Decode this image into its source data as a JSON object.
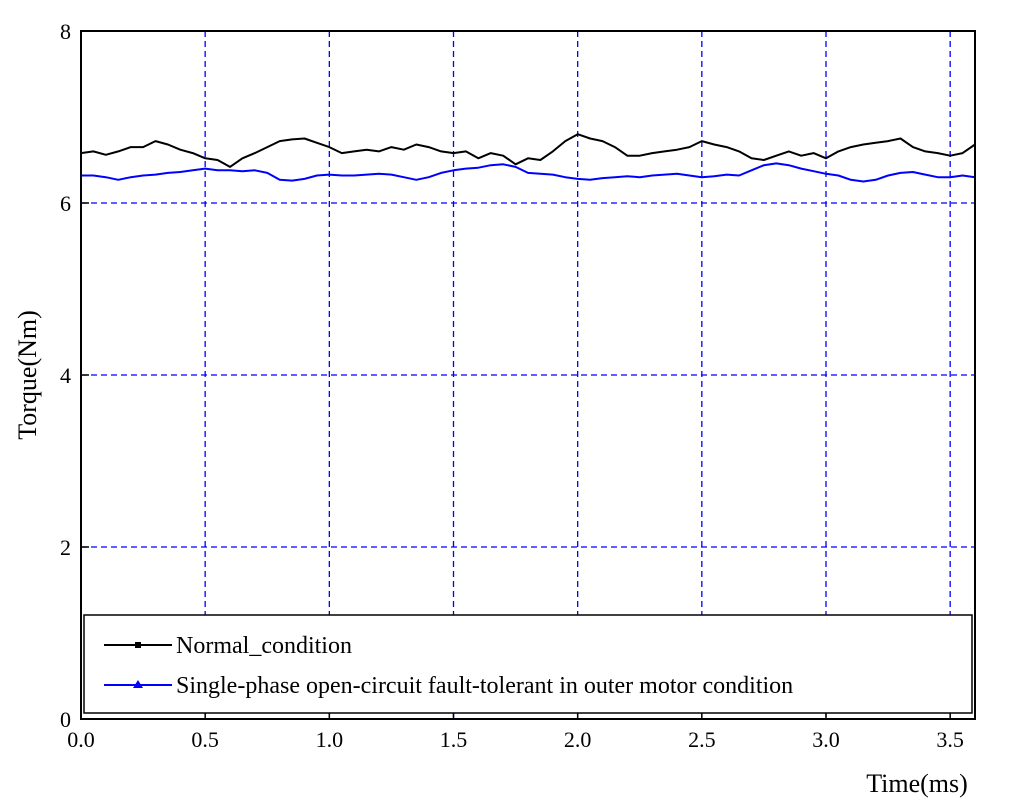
{
  "chart_data": {
    "type": "line",
    "title": "",
    "xlabel": "Time(ms)",
    "ylabel": "Torque(Nm)",
    "xlim": [
      0.0,
      3.6
    ],
    "ylim": [
      0,
      8
    ],
    "xticks": [
      0.0,
      0.5,
      1.0,
      1.5,
      2.0,
      2.5,
      3.0,
      3.5
    ],
    "xtick_labels": [
      "0.0",
      "0.5",
      "1.0",
      "1.5",
      "2.0",
      "2.5",
      "3.0",
      "3.5"
    ],
    "yticks": [
      0,
      2,
      4,
      6,
      8
    ],
    "ytick_labels": [
      "0",
      "2",
      "4",
      "6",
      "8"
    ],
    "grid": true,
    "grid_color": "#0000ff",
    "legend_position": "bottom",
    "series": [
      {
        "name": "Normal_condition",
        "color": "#000000",
        "marker": "square",
        "x": [
          0.0,
          0.05,
          0.1,
          0.15,
          0.2,
          0.25,
          0.3,
          0.35,
          0.4,
          0.45,
          0.5,
          0.55,
          0.6,
          0.65,
          0.7,
          0.75,
          0.8,
          0.85,
          0.9,
          0.95,
          1.0,
          1.05,
          1.1,
          1.15,
          1.2,
          1.25,
          1.3,
          1.35,
          1.4,
          1.45,
          1.5,
          1.55,
          1.6,
          1.65,
          1.7,
          1.75,
          1.8,
          1.85,
          1.9,
          1.95,
          2.0,
          2.05,
          2.1,
          2.15,
          2.2,
          2.25,
          2.3,
          2.35,
          2.4,
          2.45,
          2.5,
          2.55,
          2.6,
          2.65,
          2.7,
          2.75,
          2.8,
          2.85,
          2.9,
          2.95,
          3.0,
          3.05,
          3.1,
          3.15,
          3.2,
          3.25,
          3.3,
          3.35,
          3.4,
          3.45,
          3.5,
          3.55,
          3.6
        ],
        "y": [
          6.58,
          6.6,
          6.56,
          6.6,
          6.65,
          6.65,
          6.72,
          6.68,
          6.62,
          6.58,
          6.52,
          6.5,
          6.42,
          6.52,
          6.58,
          6.65,
          6.72,
          6.74,
          6.75,
          6.7,
          6.65,
          6.58,
          6.6,
          6.62,
          6.6,
          6.65,
          6.62,
          6.68,
          6.65,
          6.6,
          6.58,
          6.6,
          6.52,
          6.58,
          6.55,
          6.45,
          6.52,
          6.5,
          6.6,
          6.72,
          6.8,
          6.75,
          6.72,
          6.65,
          6.55,
          6.55,
          6.58,
          6.6,
          6.62,
          6.65,
          6.72,
          6.68,
          6.65,
          6.6,
          6.52,
          6.5,
          6.55,
          6.6,
          6.55,
          6.58,
          6.52,
          6.6,
          6.65,
          6.68,
          6.7,
          6.72,
          6.75,
          6.65,
          6.6,
          6.58,
          6.55,
          6.58,
          6.68
        ]
      },
      {
        "name": "Single-phase open-circuit fault-tolerant in outer motor condition",
        "color": "#0000ff",
        "marker": "triangle",
        "x": [
          0.0,
          0.05,
          0.1,
          0.15,
          0.2,
          0.25,
          0.3,
          0.35,
          0.4,
          0.45,
          0.5,
          0.55,
          0.6,
          0.65,
          0.7,
          0.75,
          0.8,
          0.85,
          0.9,
          0.95,
          1.0,
          1.05,
          1.1,
          1.15,
          1.2,
          1.25,
          1.3,
          1.35,
          1.4,
          1.45,
          1.5,
          1.55,
          1.6,
          1.65,
          1.7,
          1.75,
          1.8,
          1.85,
          1.9,
          1.95,
          2.0,
          2.05,
          2.1,
          2.15,
          2.2,
          2.25,
          2.3,
          2.35,
          2.4,
          2.45,
          2.5,
          2.55,
          2.6,
          2.65,
          2.7,
          2.75,
          2.8,
          2.85,
          2.9,
          2.95,
          3.0,
          3.05,
          3.1,
          3.15,
          3.2,
          3.25,
          3.3,
          3.35,
          3.4,
          3.45,
          3.5,
          3.55,
          3.6
        ],
        "y": [
          6.32,
          6.32,
          6.3,
          6.27,
          6.3,
          6.32,
          6.33,
          6.35,
          6.36,
          6.38,
          6.4,
          6.38,
          6.38,
          6.37,
          6.38,
          6.35,
          6.27,
          6.26,
          6.28,
          6.32,
          6.33,
          6.32,
          6.32,
          6.33,
          6.34,
          6.33,
          6.3,
          6.27,
          6.3,
          6.35,
          6.38,
          6.4,
          6.41,
          6.44,
          6.45,
          6.42,
          6.35,
          6.34,
          6.33,
          6.3,
          6.28,
          6.27,
          6.29,
          6.3,
          6.31,
          6.3,
          6.32,
          6.33,
          6.34,
          6.32,
          6.3,
          6.31,
          6.33,
          6.32,
          6.38,
          6.44,
          6.46,
          6.44,
          6.4,
          6.37,
          6.34,
          6.32,
          6.27,
          6.25,
          6.27,
          6.32,
          6.35,
          6.36,
          6.33,
          6.3,
          6.3,
          6.32,
          6.3
        ]
      }
    ]
  }
}
